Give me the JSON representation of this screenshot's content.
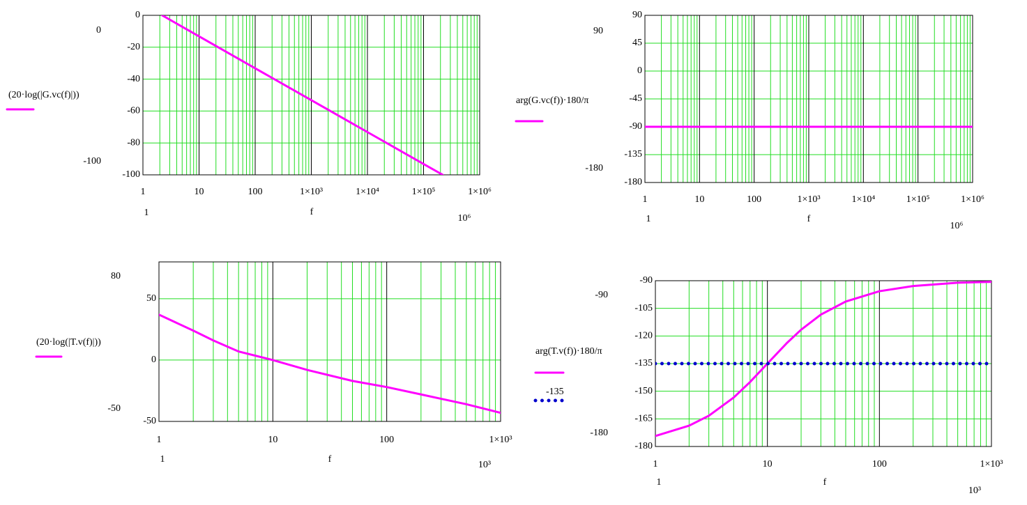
{
  "chart_data": [
    {
      "type": "line",
      "xscale": "log",
      "x_label": "f",
      "xlim": [
        1,
        1000000
      ],
      "xlim_labels": [
        "1",
        "10⁶"
      ],
      "xticks": [
        1,
        10,
        100,
        {
          "value": 1000,
          "label": "1×10³"
        },
        {
          "value": 10000,
          "label": "1×10⁴"
        },
        {
          "value": 100000,
          "label": "1×10⁵"
        },
        {
          "value": 1000000,
          "label": "1×10⁶"
        }
      ],
      "ylim": [
        -100,
        0
      ],
      "ylim_labels": [
        "-100",
        "0"
      ],
      "yticks": [
        -100,
        -80,
        -60,
        -40,
        -20,
        0
      ],
      "grid": true,
      "series": [
        {
          "name": "(20·log(|G.vc(f)|))",
          "color": "#ff00ff",
          "style": "solid",
          "x": [
            2.2,
            10,
            100,
            1000,
            10000,
            100000,
            220000
          ],
          "values": [
            0,
            -13.2,
            -33.2,
            -53.2,
            -73.2,
            -93.2,
            -100
          ]
        }
      ]
    },
    {
      "type": "line",
      "xscale": "log",
      "x_label": "f",
      "xlim": [
        1,
        1000000
      ],
      "xlim_labels": [
        "1",
        "10⁶"
      ],
      "xticks": [
        1,
        10,
        100,
        {
          "value": 1000,
          "label": "1×10³"
        },
        {
          "value": 10000,
          "label": "1×10⁴"
        },
        {
          "value": 100000,
          "label": "1×10⁵"
        },
        {
          "value": 1000000,
          "label": "1×10⁶"
        }
      ],
      "ylim": [
        -180,
        90
      ],
      "ylim_labels": [
        "-180",
        "90"
      ],
      "yticks": [
        -180,
        -135,
        -90,
        -45,
        0,
        45,
        90
      ],
      "grid": true,
      "series": [
        {
          "name": "arg(G.vc(f))·180/π",
          "color": "#ff00ff",
          "style": "solid",
          "x": [
            1,
            1000000
          ],
          "values": [
            -90,
            -90
          ]
        }
      ]
    },
    {
      "type": "line",
      "xscale": "log",
      "x_label": "f",
      "xlim": [
        1,
        1000
      ],
      "xlim_labels": [
        "1",
        "10³"
      ],
      "xticks": [
        1,
        10,
        100,
        {
          "value": 1000,
          "label": "1×10³"
        }
      ],
      "ylim": [
        -50,
        80
      ],
      "ylim_labels": [
        "-50",
        "80"
      ],
      "yticks": [
        -50,
        0,
        50
      ],
      "grid": true,
      "series": [
        {
          "name": "(20·log(|T.v(f)|))",
          "color": "#ff00ff",
          "style": "solid",
          "x": [
            1,
            2,
            3,
            5,
            10,
            20,
            50,
            100,
            200,
            500,
            1000
          ],
          "values": [
            37,
            24,
            16,
            7,
            0,
            -8,
            -17,
            -22,
            -28,
            -36,
            -43
          ]
        }
      ]
    },
    {
      "type": "line",
      "xscale": "log",
      "x_label": "f",
      "xlim": [
        1,
        1000
      ],
      "xlim_labels": [
        "1",
        "10³"
      ],
      "xticks": [
        1,
        10,
        100,
        {
          "value": 1000,
          "label": "1×10³"
        }
      ],
      "ylim": [
        -180,
        -90
      ],
      "ylim_labels": [
        "-180",
        "-90"
      ],
      "yticks": [
        -180,
        -165,
        -150,
        -135,
        -120,
        -105,
        -90
      ],
      "grid": true,
      "series": [
        {
          "name": "arg(T.v(f))·180/π",
          "color": "#ff00ff",
          "style": "solid",
          "x": [
            1,
            2,
            3,
            5,
            7,
            10,
            15,
            20,
            30,
            50,
            100,
            200,
            500,
            1000
          ],
          "values": [
            -174.3,
            -168.7,
            -163.3,
            -153.4,
            -145,
            -135,
            -123.7,
            -116.6,
            -108.4,
            -101.3,
            -95.7,
            -92.9,
            -91.1,
            -90.6
          ]
        },
        {
          "name": "-135",
          "color": "#0000cc",
          "style": "dotted",
          "x": [
            1,
            1000
          ],
          "values": [
            -135,
            -135
          ]
        }
      ]
    }
  ]
}
